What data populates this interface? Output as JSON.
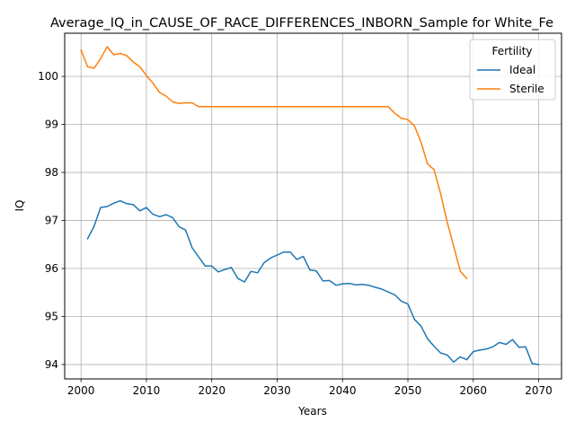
{
  "chart_data": {
    "type": "line",
    "title": "Average_IQ_in_CAUSE_OF_RACE_DIFFERENCES_INBORN_Sample for White_Fe",
    "xlabel": "Years",
    "ylabel": "IQ",
    "xlim": [
      1997.5,
      2073.5
    ],
    "ylim": [
      93.7,
      100.9
    ],
    "xticks": [
      2000,
      2010,
      2020,
      2030,
      2040,
      2050,
      2060,
      2070
    ],
    "yticks": [
      94,
      95,
      96,
      97,
      98,
      99,
      100
    ],
    "grid": true,
    "legend": {
      "title": "Fertility",
      "placement": "top-right"
    },
    "series": [
      {
        "name": "Ideal",
        "color": "#1f77b4",
        "x": [
          2001,
          2002,
          2003,
          2004,
          2005,
          2006,
          2007,
          2008,
          2009,
          2010,
          2011,
          2012,
          2013,
          2014,
          2015,
          2016,
          2017,
          2018,
          2019,
          2020,
          2021,
          2022,
          2023,
          2024,
          2025,
          2026,
          2027,
          2028,
          2029,
          2030,
          2031,
          2032,
          2033,
          2034,
          2035,
          2036,
          2037,
          2038,
          2039,
          2040,
          2041,
          2042,
          2043,
          2044,
          2045,
          2046,
          2047,
          2048,
          2049,
          2050,
          2051,
          2052,
          2053,
          2054,
          2055,
          2056,
          2057,
          2058,
          2059,
          2060,
          2061,
          2062,
          2063,
          2064,
          2065,
          2066,
          2067,
          2068,
          2069,
          2070
        ],
        "y": [
          96.62,
          96.88,
          97.27,
          97.29,
          97.36,
          97.41,
          97.35,
          97.33,
          97.2,
          97.27,
          97.13,
          97.08,
          97.12,
          97.06,
          96.87,
          96.8,
          96.43,
          96.24,
          96.05,
          96.05,
          95.93,
          95.98,
          96.02,
          95.79,
          95.72,
          95.94,
          95.91,
          96.12,
          96.22,
          96.28,
          96.34,
          96.34,
          96.19,
          96.25,
          95.97,
          95.95,
          95.74,
          95.75,
          95.65,
          95.68,
          95.69,
          95.66,
          95.67,
          95.65,
          95.61,
          95.57,
          95.51,
          95.45,
          95.32,
          95.26,
          94.94,
          94.8,
          94.54,
          94.38,
          94.24,
          94.2,
          94.05,
          94.16,
          94.1,
          94.27,
          94.3,
          94.32,
          94.37,
          94.46,
          94.42,
          94.52,
          94.36,
          94.37,
          94.02,
          94.0
        ]
      },
      {
        "name": "Sterile",
        "color": "#ff7f0e",
        "x": [
          2000,
          2001,
          2002,
          2003,
          2004,
          2005,
          2006,
          2007,
          2008,
          2009,
          2010,
          2011,
          2012,
          2013,
          2014,
          2015,
          2016,
          2017,
          2018,
          2019,
          2020,
          2021,
          2022,
          2023,
          2024,
          2025,
          2026,
          2027,
          2028,
          2029,
          2030,
          2031,
          2032,
          2033,
          2034,
          2035,
          2036,
          2037,
          2038,
          2039,
          2040,
          2041,
          2042,
          2043,
          2044,
          2045,
          2046,
          2047,
          2048,
          2049,
          2050,
          2051,
          2052,
          2053,
          2054,
          2055,
          2056,
          2057,
          2058,
          2059
        ],
        "y": [
          100.55,
          100.2,
          100.17,
          100.37,
          100.62,
          100.45,
          100.48,
          100.43,
          100.3,
          100.2,
          100.02,
          99.86,
          99.67,
          99.59,
          99.47,
          99.44,
          99.45,
          99.45,
          99.37,
          99.37,
          99.37,
          99.37,
          99.37,
          99.37,
          99.37,
          99.37,
          99.37,
          99.37,
          99.37,
          99.37,
          99.37,
          99.37,
          99.37,
          99.37,
          99.37,
          99.37,
          99.37,
          99.37,
          99.37,
          99.37,
          99.37,
          99.37,
          99.37,
          99.37,
          99.37,
          99.37,
          99.37,
          99.37,
          99.23,
          99.13,
          99.1,
          98.97,
          98.63,
          98.18,
          98.06,
          97.56,
          96.97,
          96.47,
          95.95,
          95.79
        ]
      }
    ]
  }
}
